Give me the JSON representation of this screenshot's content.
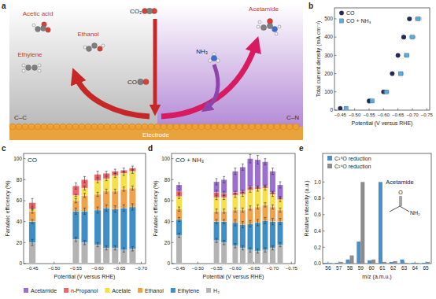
{
  "diagram": {
    "panel": "a",
    "products": [
      "Acetic acid",
      "Ethanol",
      "Ethylene"
    ],
    "reactant": "CO₂",
    "intermediate": "CO",
    "amine": "NH₃",
    "amide": "Acetamide",
    "regions": [
      "C–C",
      "C–N"
    ],
    "electrode": "Electrode"
  },
  "chart_data": [
    {
      "panel": "b",
      "type": "scatter",
      "x_label": "Potential (V versus RHE)",
      "y_label": "Total current density (mA cm⁻²)",
      "xlim": [
        -0.43,
        -0.76
      ],
      "xticks": [
        {
          "value": -0.45,
          "label": "−0.45"
        },
        {
          "value": -0.5,
          "label": "−0.50"
        },
        {
          "value": -0.55,
          "label": "−0.55"
        },
        {
          "value": -0.6,
          "label": "−0.60"
        },
        {
          "value": -0.65,
          "label": "−0.65"
        },
        {
          "value": -0.7,
          "label": "−0.70"
        },
        {
          "value": -0.75,
          "label": "−0.75"
        }
      ],
      "ylim": [
        0,
        560
      ],
      "yticks": [
        0,
        100,
        200,
        300,
        400,
        500
      ],
      "legend": "upper left",
      "series": [
        {
          "name": "CO",
          "color": "#1f2a5a",
          "marker": "circle",
          "x": [
            -0.45,
            -0.55,
            -0.6,
            -0.63,
            -0.65,
            -0.67,
            -0.69
          ],
          "values": [
            10,
            50,
            100,
            200,
            300,
            400,
            500
          ],
          "xerr": [
            0.003,
            0.004,
            0.005,
            0.005,
            0.005,
            0.006,
            0.006
          ]
        },
        {
          "name": "CO + NH₃",
          "color": "#5aaedf",
          "marker": "square",
          "x": [
            -0.47,
            -0.56,
            -0.61,
            -0.66,
            -0.68,
            -0.7,
            -0.72
          ],
          "values": [
            10,
            50,
            100,
            200,
            300,
            400,
            500
          ],
          "xerr": [
            0.005,
            0.006,
            0.008,
            0.008,
            0.008,
            0.01,
            0.01
          ]
        }
      ]
    },
    {
      "panel": "c",
      "type": "bar",
      "stacked": true,
      "title": "CO",
      "x_label": "Potential (V versus RHE)",
      "y_label": "Faradaic efficiency (%)",
      "xlim": [
        -0.43,
        -0.71
      ],
      "xticks": [
        {
          "value": -0.45,
          "label": "−0.45"
        },
        {
          "value": -0.5,
          "label": "−0.50"
        },
        {
          "value": -0.55,
          "label": "−0.55"
        },
        {
          "value": -0.6,
          "label": "−0.60"
        },
        {
          "value": -0.65,
          "label": "−0.65"
        },
        {
          "value": -0.7,
          "label": "−0.70"
        }
      ],
      "ylim": [
        0,
        105
      ],
      "yticks": [
        0,
        20,
        40,
        60,
        80,
        100
      ],
      "x": [
        -0.45,
        -0.55,
        -0.57,
        -0.6,
        -0.62,
        -0.64,
        -0.66,
        -0.68
      ],
      "series": [
        {
          "color": "#b3b3b3",
          "values": [
            20,
            23,
            20,
            18,
            15,
            15,
            13,
            14
          ],
          "errors": [
            3,
            2,
            2,
            2,
            2,
            2,
            2,
            2
          ]
        },
        {
          "color": "#3f8fc6",
          "values": [
            20,
            27,
            30,
            33,
            38,
            37,
            40,
            40
          ],
          "errors": [
            2,
            3,
            3,
            3,
            3,
            3,
            3,
            3
          ]
        },
        {
          "color": "#f0a24a",
          "values": [
            10,
            10,
            15,
            15,
            16,
            17,
            18,
            18
          ],
          "errors": [
            2,
            2,
            2,
            2,
            2,
            2,
            2,
            2
          ]
        },
        {
          "color": "#f5e04a",
          "values": [
            2,
            5,
            7,
            13,
            12,
            15,
            15,
            16
          ],
          "errors": [
            1,
            1,
            2,
            2,
            2,
            2,
            2,
            2
          ]
        },
        {
          "color": "#f0656c",
          "values": [
            6,
            9,
            8,
            6,
            5,
            4,
            3,
            3
          ],
          "errors": [
            4,
            3,
            3,
            3,
            2,
            2,
            2,
            2
          ]
        }
      ]
    },
    {
      "panel": "d",
      "type": "bar",
      "stacked": true,
      "title": "CO + NH₃",
      "x_label": "Potential (V versus RHE)",
      "y_label": "Faradaic efficiency (%)",
      "legend": "bottom",
      "xlim": [
        -0.43,
        -0.76
      ],
      "xticks": [
        {
          "value": -0.45,
          "label": "−0.45"
        },
        {
          "value": -0.5,
          "label": "−0.50"
        },
        {
          "value": -0.55,
          "label": "−0.55"
        },
        {
          "value": -0.6,
          "label": "−0.60"
        },
        {
          "value": -0.65,
          "label": "−0.65"
        },
        {
          "value": -0.7,
          "label": "−0.70"
        },
        {
          "value": -0.75,
          "label": "−0.75"
        }
      ],
      "ylim": [
        0,
        105
      ],
      "yticks": [
        0,
        20,
        40,
        60,
        80,
        100
      ],
      "x": [
        -0.45,
        -0.55,
        -0.57,
        -0.6,
        -0.62,
        -0.64,
        -0.66,
        -0.68,
        -0.7,
        -0.72
      ],
      "series": [
        {
          "name": "H₂",
          "color": "#b3b3b3",
          "values": [
            27,
            22,
            20,
            17,
            15,
            13,
            12,
            13,
            15,
            18
          ],
          "errors": [
            2,
            2,
            2,
            2,
            2,
            2,
            2,
            2,
            2,
            2
          ]
        },
        {
          "name": "Ethylene",
          "color": "#3f8fc6",
          "values": [
            15,
            18,
            20,
            22,
            22,
            25,
            27,
            28,
            25,
            22
          ],
          "errors": [
            2,
            2,
            2,
            3,
            3,
            3,
            3,
            3,
            3,
            3
          ]
        },
        {
          "name": "Ethanol",
          "color": "#f0a24a",
          "values": [
            10,
            10,
            10,
            12,
            14,
            15,
            15,
            15,
            14,
            11
          ],
          "errors": [
            2,
            2,
            2,
            2,
            2,
            2,
            2,
            2,
            2,
            2
          ]
        },
        {
          "name": "Acetate",
          "color": "#f5e04a",
          "values": [
            12,
            13,
            13,
            14,
            15,
            17,
            17,
            16,
            12,
            10
          ],
          "errors": [
            2,
            2,
            2,
            2,
            2,
            2,
            2,
            2,
            2,
            2
          ]
        },
        {
          "name": "n-Propanol",
          "color": "#f0656c",
          "values": [
            5,
            5,
            4,
            3,
            3,
            3,
            2,
            2,
            2,
            2
          ],
          "errors": [
            2,
            2,
            2,
            1,
            1,
            1,
            1,
            1,
            1,
            1
          ]
        },
        {
          "name": "Acetamide",
          "color": "#9b6fd0",
          "values": [
            6,
            10,
            13,
            20,
            23,
            27,
            26,
            23,
            20,
            12
          ],
          "errors": [
            2,
            3,
            3,
            3,
            3,
            4,
            4,
            3,
            3,
            3
          ]
        }
      ]
    },
    {
      "panel": "e",
      "type": "bar",
      "x_label": "m/z (a.m.u.)",
      "y_label": "Relative intensity (a.u.)",
      "legend": "upper left",
      "annotation": "Acetamide",
      "structure_labels": [
        "O",
        "NH₂"
      ],
      "categories": [
        56,
        57,
        58,
        59,
        60,
        61,
        62,
        63,
        64,
        65
      ],
      "ylim": [
        0,
        1.35
      ],
      "yticks": [
        {
          "value": 0,
          "label": "0.0"
        },
        {
          "value": 0.2,
          "label": "0.2"
        },
        {
          "value": 0.4,
          "label": "0.4"
        },
        {
          "value": 0.6,
          "label": "0.6"
        },
        {
          "value": 0.8,
          "label": "0.8"
        },
        {
          "value": 1,
          "label": "1.0"
        }
      ],
      "series": [
        {
          "name": "C¹⁸O reduction",
          "color": "#4a90c8",
          "values": [
            0.01,
            0.01,
            0.05,
            0.27,
            0.04,
            1.0,
            0.02,
            0.05,
            0.01,
            0.01
          ]
        },
        {
          "name": "C¹⁶O reduction",
          "color": "#8c8c8c",
          "values": [
            0.01,
            0.02,
            0.1,
            1.0,
            0.05,
            0.02,
            0.03,
            0.01,
            0.01,
            0.02
          ]
        }
      ]
    }
  ]
}
